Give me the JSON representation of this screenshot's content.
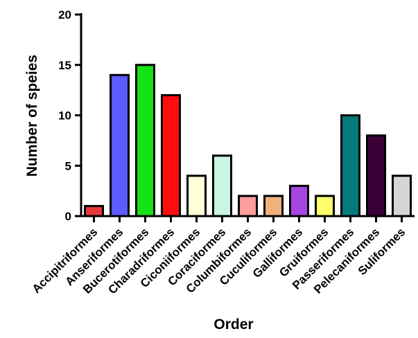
{
  "chart_data": {
    "type": "bar",
    "title": "",
    "xlabel": "Order",
    "ylabel": "Number of speies",
    "ylim": [
      0,
      20
    ],
    "yticks": [
      0,
      5,
      10,
      15,
      20
    ],
    "grid": false,
    "legend": "none",
    "categories": [
      "Accipitriformes",
      "Anseriformes",
      "Bucerotiformes",
      "Charadriformes",
      "Ciconiiformes",
      "Coraciformes",
      "Columbiformes",
      "Cuculiformes",
      "Galliformes",
      "Gruiformes",
      "Passeriformes",
      "Pelecaniformes",
      "Suliformes"
    ],
    "values": [
      1,
      14,
      15,
      12,
      4,
      6,
      2,
      2,
      3,
      2,
      10,
      8,
      4
    ],
    "colors": [
      "#e8363a",
      "#5b5bff",
      "#16e016",
      "#ff0d0d",
      "#ffffd8",
      "#c9f5e1",
      "#ff9c9c",
      "#f2b27d",
      "#a646e0",
      "#ffff6e",
      "#067a7a",
      "#3a0038",
      "#d6d6d6"
    ]
  }
}
